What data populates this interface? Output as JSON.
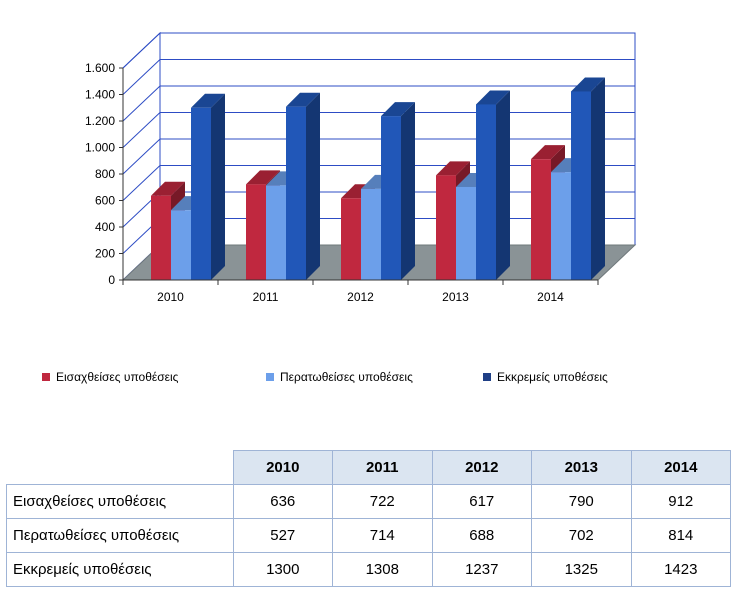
{
  "chart_data": {
    "type": "bar",
    "categories": [
      "2010",
      "2011",
      "2012",
      "2013",
      "2014"
    ],
    "series": [
      {
        "name": "Εισαχθείσες υποθέσεις",
        "values": [
          636,
          722,
          617,
          790,
          912
        ],
        "color": "#c0283f"
      },
      {
        "name": "Περατωθείσες υποθέσεις",
        "values": [
          527,
          714,
          688,
          702,
          814
        ],
        "color": "#6c9fea"
      },
      {
        "name": "Εκκρεμείς υποθέσεις",
        "values": [
          1300,
          1308,
          1237,
          1325,
          1423
        ],
        "color": "#2157b8"
      }
    ],
    "ylim": [
      0,
      1600
    ],
    "y_ticks": [
      {
        "value": 0,
        "label": "0"
      },
      {
        "value": 200,
        "label": "200"
      },
      {
        "value": 400,
        "label": "400"
      },
      {
        "value": 600,
        "label": "600"
      },
      {
        "value": 800,
        "label": "800"
      },
      {
        "value": 1000,
        "label": "1.000"
      },
      {
        "value": 1200,
        "label": "1.200"
      },
      {
        "value": 1400,
        "label": "1.400"
      },
      {
        "value": 1600,
        "label": "1.600"
      }
    ],
    "grid": true,
    "three_d": true,
    "legend_position": "bottom",
    "floor_color": "#8a9396",
    "grid_color": "#2d4cc4"
  },
  "table": {
    "header": [
      "2010",
      "2011",
      "2012",
      "2013",
      "2014"
    ],
    "rows": [
      {
        "label": "Εισαχθείσες υποθέσεις",
        "values": [
          "636",
          "722",
          "617",
          "790",
          "912"
        ]
      },
      {
        "label": "Περατωθείσες υποθέσεις",
        "values": [
          "527",
          "714",
          "688",
          "702",
          "814"
        ]
      },
      {
        "label": "Εκκρεμείς υποθέσεις",
        "values": [
          "1300",
          "1308",
          "1237",
          "1325",
          "1423"
        ]
      }
    ]
  }
}
